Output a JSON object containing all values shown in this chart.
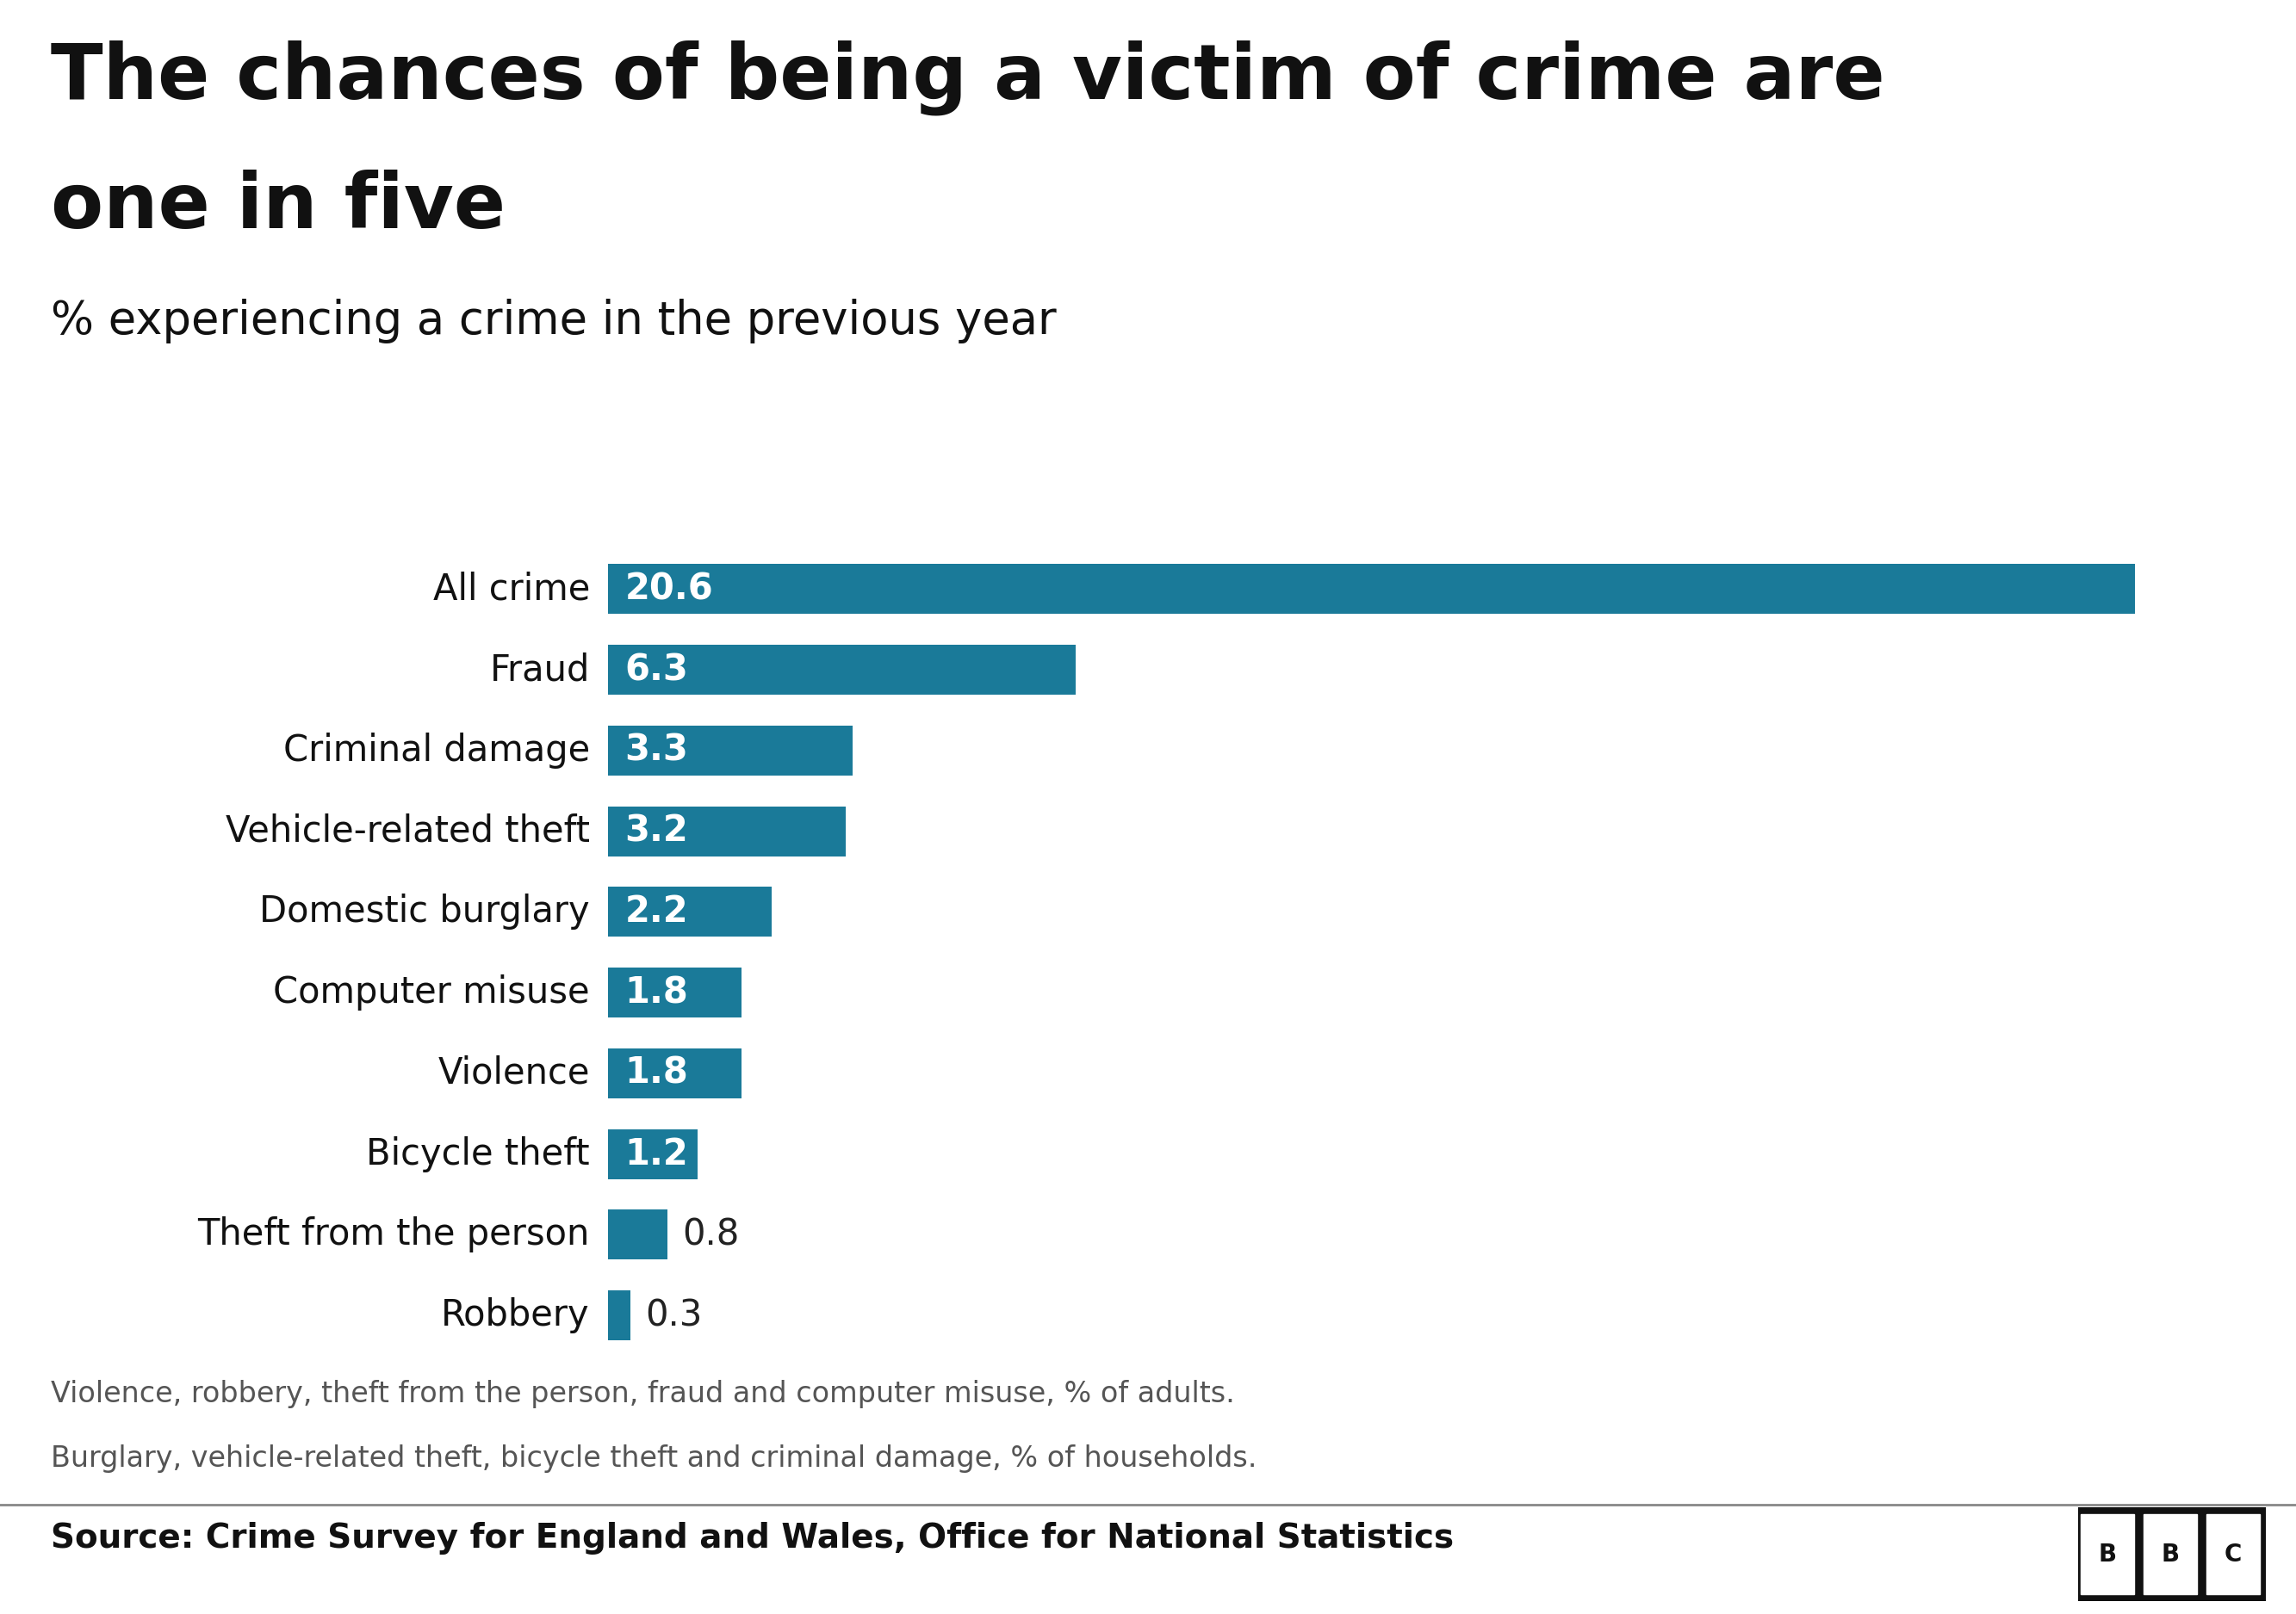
{
  "title_line1": "The chances of being a victim of crime are",
  "title_line2": "one in five",
  "subtitle": "% experiencing a crime in the previous year",
  "categories": [
    "All crime",
    "Fraud",
    "Criminal damage",
    "Vehicle-related theft",
    "Domestic burglary",
    "Computer misuse",
    "Violence",
    "Bicycle theft",
    "Theft from the person",
    "Robbery"
  ],
  "values": [
    20.6,
    6.3,
    3.3,
    3.2,
    2.2,
    1.8,
    1.8,
    1.2,
    0.8,
    0.3
  ],
  "bar_color": "#1a7a99",
  "label_color_inside": "#ffffff",
  "label_color_outside": "#333333",
  "background_color": "#ffffff",
  "footnote_line1": "Violence, robbery, theft from the person, fraud and computer misuse, % of adults.",
  "footnote_line2": "Burglary, vehicle-related theft, bicycle theft and criminal damage, % of households.",
  "source_text": "Source: Crime Survey for England and Wales, Office for National Statistics",
  "title_fontsize": 64,
  "subtitle_fontsize": 38,
  "bar_label_fontsize": 30,
  "category_fontsize": 30,
  "footnote_fontsize": 24,
  "source_fontsize": 28,
  "xlim_max": 22
}
